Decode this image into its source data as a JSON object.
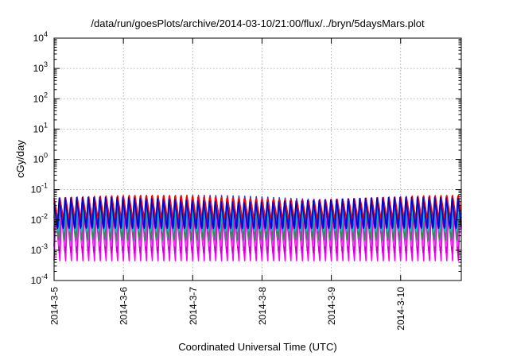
{
  "chart_data": {
    "type": "line",
    "title": "/data/run/goesPlots/archive/2014-03-10/21:00/flux/../bryn/5daysMars.plot",
    "xlabel": "Coordinated Universal Time (UTC)",
    "ylabel": "cGy/day",
    "yscale": "log",
    "ylim": [
      0.0001,
      10000
    ],
    "y_ticks": [
      {
        "value": 0.0001,
        "base": "10",
        "exp": "-4"
      },
      {
        "value": 0.001,
        "base": "10",
        "exp": "-3"
      },
      {
        "value": 0.01,
        "base": "10",
        "exp": "-2"
      },
      {
        "value": 0.1,
        "base": "10",
        "exp": "-1"
      },
      {
        "value": 1,
        "base": "10",
        "exp": "0"
      },
      {
        "value": 10,
        "base": "10",
        "exp": "1"
      },
      {
        "value": 100,
        "base": "10",
        "exp": "2"
      },
      {
        "value": 1000,
        "base": "10",
        "exp": "3"
      },
      {
        "value": 10000,
        "base": "10",
        "exp": "4"
      }
    ],
    "xlim": [
      "2014-03-05 00:00",
      "2014-03-10 21:00"
    ],
    "x_ticks": [
      "2014-3-5",
      "2014-3-6",
      "2014-3-7",
      "2014-3-8",
      "2014-3-9",
      "2014-3-10"
    ],
    "grid": true,
    "periods_per_day": 12,
    "series": [
      {
        "color": "#ff00ff",
        "peak": 0.022,
        "trough": 0.00045
      },
      {
        "color": "#cc00cc",
        "peak": 0.015,
        "trough": 0.0007
      },
      {
        "color": "#ff33ff",
        "peak": 0.03,
        "trough": 0.0011
      },
      {
        "color": "#2e8b57",
        "peak": 0.035,
        "trough": 0.002
      },
      {
        "color": "#00c8c8",
        "peak": 0.045,
        "trough": 0.0035
      },
      {
        "color": "#1e3cff",
        "peak": 0.055,
        "trough": 0.006
      },
      {
        "color": "#ff0000",
        "peak": 0.065,
        "trough": 0.01
      },
      {
        "color": "#0000cc",
        "peak": 0.05,
        "trough": 0.0045
      }
    ]
  }
}
